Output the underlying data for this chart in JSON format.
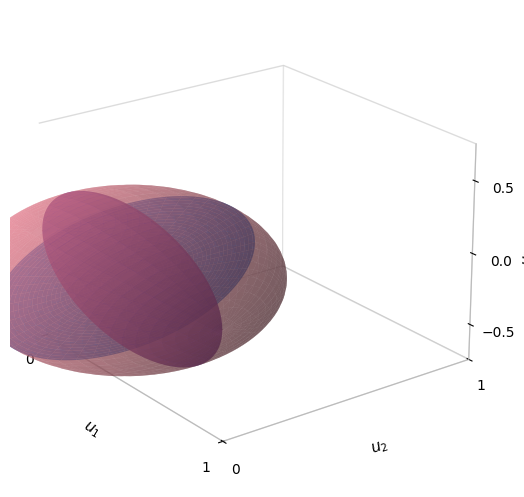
{
  "pink_color": "#E8788A",
  "pink_alpha": 0.5,
  "purple_color": "#552288",
  "purple_alpha": 0.8,
  "blue_color": "#2272CC",
  "blue_alpha": 0.88,
  "elev": 22,
  "azim": -37,
  "n_surf": 80,
  "xlim": [
    0,
    1
  ],
  "ylim": [
    0,
    1
  ],
  "zlim": [
    -0.75,
    0.75
  ],
  "xticks": [
    0,
    1
  ],
  "yticks": [
    0,
    1
  ],
  "zticks": [
    -0.5,
    0,
    0.5
  ]
}
